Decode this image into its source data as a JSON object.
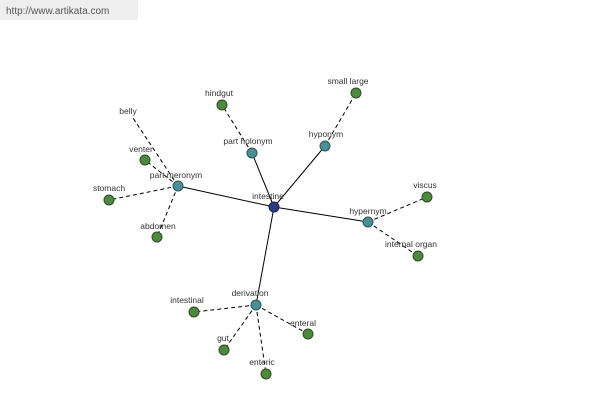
{
  "header": {
    "url": "http://www.artikata.com"
  },
  "center": {
    "label": "intestine"
  },
  "relations": [
    {
      "label": "part holonym",
      "terms": [
        "hindgut"
      ]
    },
    {
      "label": "hyponym",
      "terms": [
        "small large"
      ]
    },
    {
      "label": "part meronym",
      "terms": [
        "belly",
        "venter",
        "stomach",
        "abdomen"
      ]
    },
    {
      "label": "hypernym",
      "terms": [
        "viscus",
        "internal organ"
      ]
    },
    {
      "label": "derivation",
      "terms": [
        "intestinal",
        "gut",
        "enteric",
        "enteral"
      ]
    }
  ]
}
